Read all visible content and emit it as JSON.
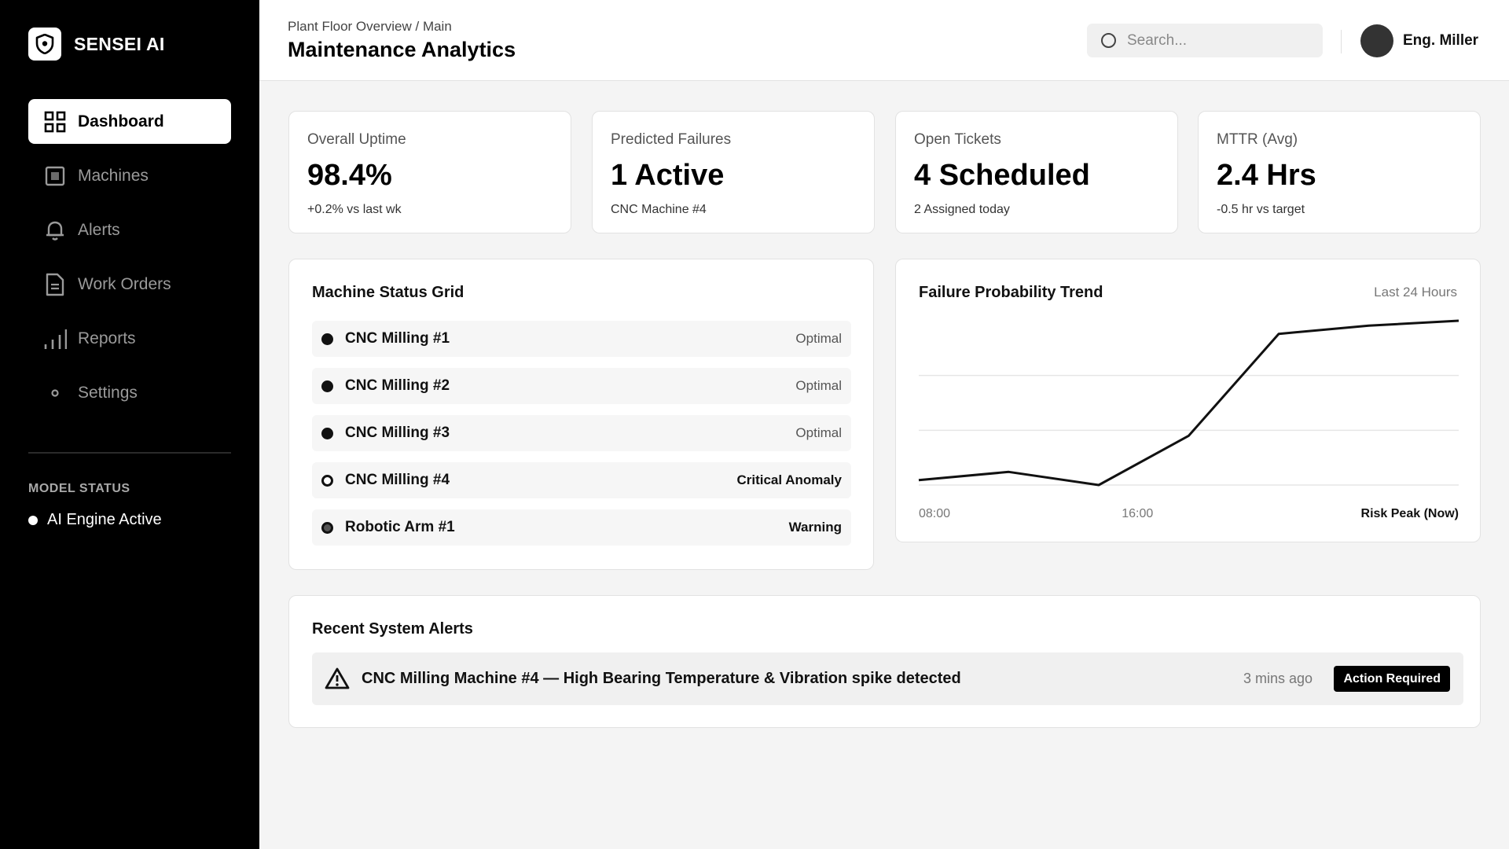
{
  "app": {
    "name": "SENSEI AI",
    "logo_icon": "shield-icon"
  },
  "sidebar": {
    "items": [
      {
        "label": "Dashboard",
        "icon": "grid-icon",
        "active": true
      },
      {
        "label": "Machines",
        "icon": "machine-icon",
        "active": false
      },
      {
        "label": "Alerts",
        "icon": "bell-icon",
        "active": false
      },
      {
        "label": "Work Orders",
        "icon": "document-icon",
        "active": false
      },
      {
        "label": "Reports",
        "icon": "bar-chart-icon",
        "active": false
      },
      {
        "label": "Settings",
        "icon": "dot-icon",
        "active": false
      }
    ],
    "model_status_label": "MODEL STATUS",
    "model_status_value": "AI Engine Active"
  },
  "header": {
    "breadcrumb": "Plant Floor Overview / Main",
    "title": "Maintenance Analytics",
    "search_placeholder": "Search...",
    "user_name": "Eng. Miller"
  },
  "stats": [
    {
      "label": "Overall Uptime",
      "value": "98.4%",
      "sub": "+0.2% vs last wk"
    },
    {
      "label": "Predicted Failures",
      "value": "1 Active",
      "sub": "CNC Machine #4"
    },
    {
      "label": "Open Tickets",
      "value": "4 Scheduled",
      "sub": "2 Assigned today"
    },
    {
      "label": "MTTR (Avg)",
      "value": "2.4 Hrs",
      "sub": "-0.5 hr vs target"
    }
  ],
  "machine_grid": {
    "title": "Machine Status Grid",
    "rows": [
      {
        "name": "CNC Milling #1",
        "status": "Optimal",
        "indicator": "filled"
      },
      {
        "name": "CNC Milling #2",
        "status": "Optimal",
        "indicator": "filled"
      },
      {
        "name": "CNC Milling #3",
        "status": "Optimal",
        "indicator": "filled"
      },
      {
        "name": "CNC Milling #4",
        "status": "Critical Anomaly",
        "indicator": "hollow"
      },
      {
        "name": "Robotic Arm #1",
        "status": "Warning",
        "indicator": "warn"
      }
    ]
  },
  "trend": {
    "title": "Failure Probability Trend",
    "range_label": "Last 24 Hours",
    "chart_data": {
      "type": "line",
      "x_tick_labels": [
        "08:00",
        "16:00",
        "Risk Peak (Now)"
      ],
      "x": [
        0,
        1,
        2,
        3,
        4,
        5,
        6
      ],
      "values": [
        0.03,
        0.08,
        0.0,
        0.3,
        0.92,
        0.97,
        1.0
      ],
      "ylim": [
        0,
        1
      ],
      "grid": true,
      "legend": "none"
    }
  },
  "alerts": {
    "title": "Recent System Alerts",
    "items": [
      {
        "icon": "warning-triangle-icon",
        "text": "CNC Milling Machine #4 — High Bearing Temperature & Vibration spike detected",
        "time": "3 mins ago",
        "badge": "Action Required"
      }
    ]
  }
}
